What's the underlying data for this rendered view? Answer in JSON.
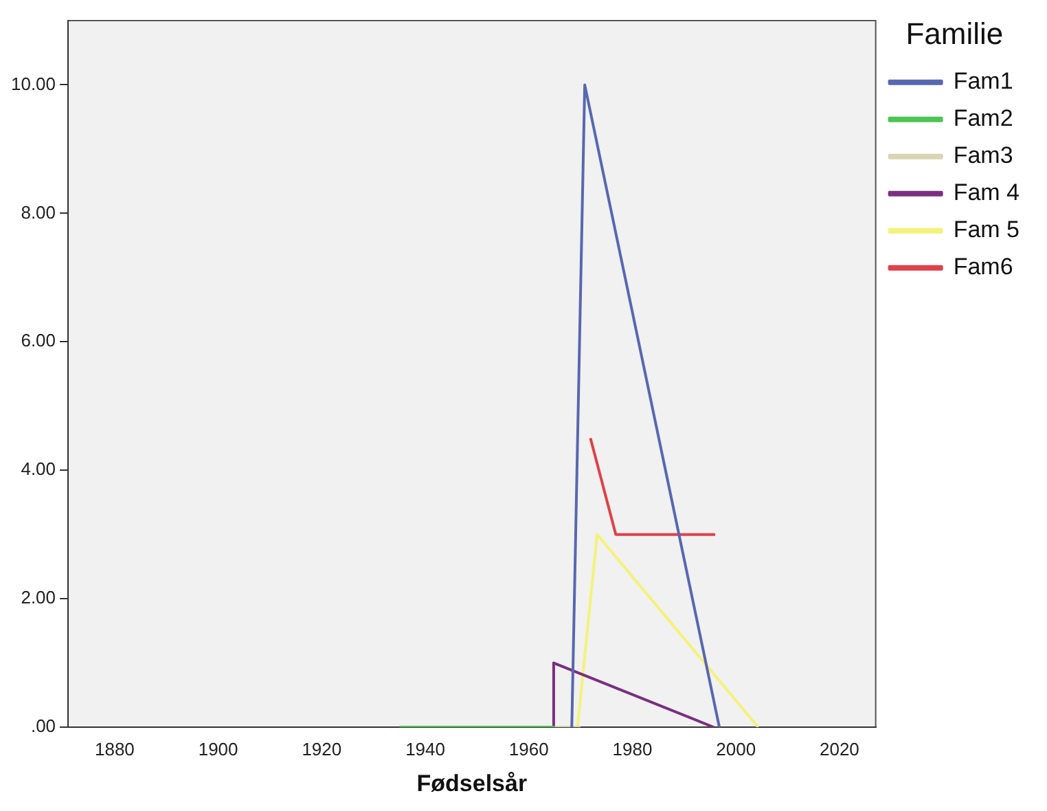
{
  "chart_data": {
    "type": "line",
    "xlabel": "Fødselsår",
    "legend_title": "Familie",
    "legend": "right",
    "grid": false,
    "marker": "none",
    "line_style": "solid",
    "xlim": [
      1871,
      2027
    ],
    "xticks": [
      1880,
      1900,
      1920,
      1940,
      1960,
      1980,
      2000,
      2020
    ],
    "ylim": [
      0,
      11
    ],
    "yticks": [
      {
        "value": 0,
        "label": ".00"
      },
      {
        "value": 2,
        "label": "2.00"
      },
      {
        "value": 4,
        "label": "4.00"
      },
      {
        "value": 6,
        "label": "6.00"
      },
      {
        "value": 8,
        "label": "8.00"
      },
      {
        "value": 10,
        "label": "10.00"
      }
    ],
    "series": [
      {
        "name": "Fam1",
        "color": "#5867b0",
        "x": [
          1968.3,
          1970.8,
          1996.8
        ],
        "values": [
          0,
          10,
          0
        ]
      },
      {
        "name": "Fam2",
        "color": "#4cc552",
        "x": [
          1935,
          1965
        ],
        "values": [
          0,
          0
        ]
      },
      {
        "name": "Fam3",
        "color": "#d8d4b4",
        "x": [
          1965,
          1970
        ],
        "values": [
          0,
          0
        ]
      },
      {
        "name": "Fam 4",
        "color": "#7a2f80",
        "x": [
          1964.8,
          1964.8,
          1995.7
        ],
        "values": [
          0,
          1,
          0
        ]
      },
      {
        "name": "Fam 5",
        "color": "#f4f27a",
        "x": [
          1969.4,
          1973.2,
          2004.3
        ],
        "values": [
          0,
          3,
          0
        ]
      },
      {
        "name": "Fam6",
        "color": "#e0404a",
        "x": [
          1971.9,
          1976.8,
          1996
        ],
        "values": [
          4.5,
          3,
          3
        ]
      }
    ]
  }
}
